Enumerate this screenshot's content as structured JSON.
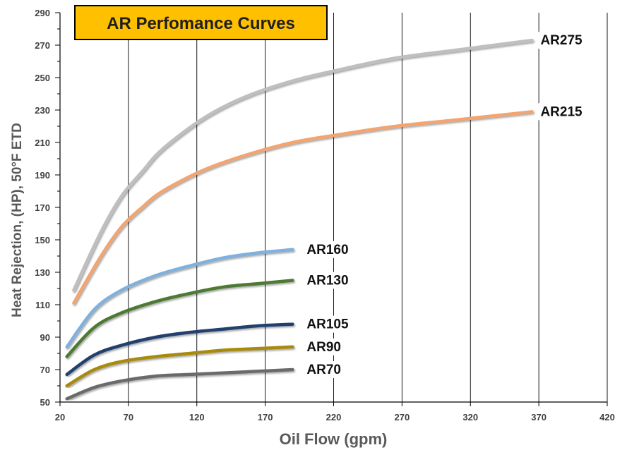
{
  "chart_data": {
    "type": "line",
    "title": "AR Perfomance Curves",
    "xlabel": "Oil Flow (gpm)",
    "ylabel": "Heat Rejection, (HP), 50°F ETD",
    "xlim": [
      20,
      420
    ],
    "ylim": [
      50,
      290
    ],
    "x_ticks": [
      20,
      70,
      120,
      170,
      220,
      270,
      320,
      370,
      420
    ],
    "y_ticks": [
      50,
      70,
      90,
      110,
      130,
      150,
      170,
      190,
      210,
      230,
      250,
      270,
      290
    ],
    "grid": "vertical",
    "title_color": "#FFC000",
    "series": [
      {
        "name": "AR275",
        "color": "#BFBFBF",
        "x": [
          30,
          50,
          65,
          80,
          95,
          125,
          155,
          190,
          225,
          265,
          310,
          365
        ],
        "y": [
          119,
          155,
          177,
          192,
          206,
          225,
          238,
          248,
          255,
          262,
          267,
          273
        ]
      },
      {
        "name": "AR215",
        "color": "#F4A46E",
        "x": [
          30,
          50,
          65,
          80,
          95,
          125,
          155,
          190,
          225,
          265,
          310,
          365
        ],
        "y": [
          111,
          140,
          158,
          170,
          180,
          193,
          202,
          210,
          215,
          220,
          224,
          229
        ]
      },
      {
        "name": "AR160",
        "color": "#7FB1DE",
        "x": [
          25,
          45,
          65,
          90,
          115,
          140,
          165,
          190
        ],
        "y": [
          84,
          107,
          119,
          128,
          134,
          139,
          142,
          144
        ]
      },
      {
        "name": "AR130",
        "color": "#4E7A31",
        "x": [
          25,
          45,
          65,
          90,
          115,
          140,
          165,
          190
        ],
        "y": [
          78,
          96,
          105,
          112,
          117,
          121,
          123,
          125
        ]
      },
      {
        "name": "AR105",
        "color": "#23406E",
        "x": [
          25,
          45,
          65,
          90,
          115,
          140,
          165,
          190
        ],
        "y": [
          67,
          79,
          85,
          90,
          93,
          95,
          97,
          98
        ]
      },
      {
        "name": "AR90",
        "color": "#A88A10",
        "x": [
          25,
          45,
          65,
          90,
          115,
          140,
          165,
          190
        ],
        "y": [
          60,
          70,
          75,
          78,
          80,
          82,
          83,
          84
        ]
      },
      {
        "name": "AR70",
        "color": "#6B6B6B",
        "x": [
          25,
          45,
          65,
          90,
          115,
          140,
          165,
          190
        ],
        "y": [
          52,
          59,
          63,
          66,
          67,
          68,
          69,
          70
        ]
      }
    ]
  }
}
